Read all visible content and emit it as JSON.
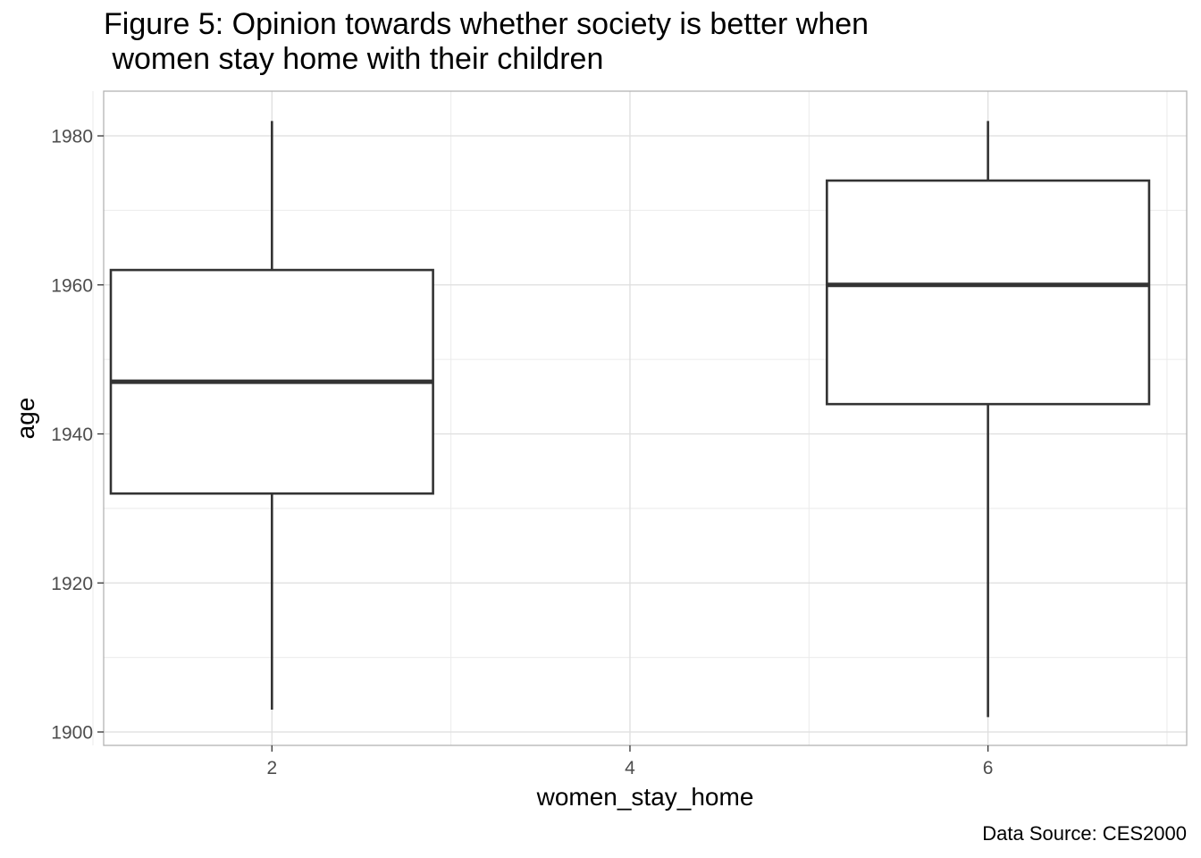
{
  "chart_data": {
    "type": "boxplot",
    "title": "Figure 5: Opinion towards whether society is better when\n women stay home with their children",
    "xlabel": "women_stay_home",
    "ylabel": "age",
    "caption": "Data Source: CES2000",
    "xlim": [
      1.06,
      7.11
    ],
    "ylim": [
      1898.2,
      1986.0
    ],
    "x_ticks": [
      2,
      4,
      6
    ],
    "x_minor_ticks": [
      1,
      3,
      5,
      7
    ],
    "y_ticks": [
      1900,
      1920,
      1940,
      1960,
      1980
    ],
    "y_minor_ticks": [
      1910,
      1930,
      1950,
      1970
    ],
    "box_half_width": 0.9,
    "grid": true,
    "boxes": [
      {
        "x": 2,
        "whisker_low": 1903,
        "q1": 1932,
        "median": 1947,
        "q3": 1962,
        "whisker_high": 1982
      },
      {
        "x": 6,
        "whisker_low": 1902,
        "q1": 1944,
        "median": 1960,
        "q3": 1974,
        "whisker_high": 1982
      }
    ]
  }
}
